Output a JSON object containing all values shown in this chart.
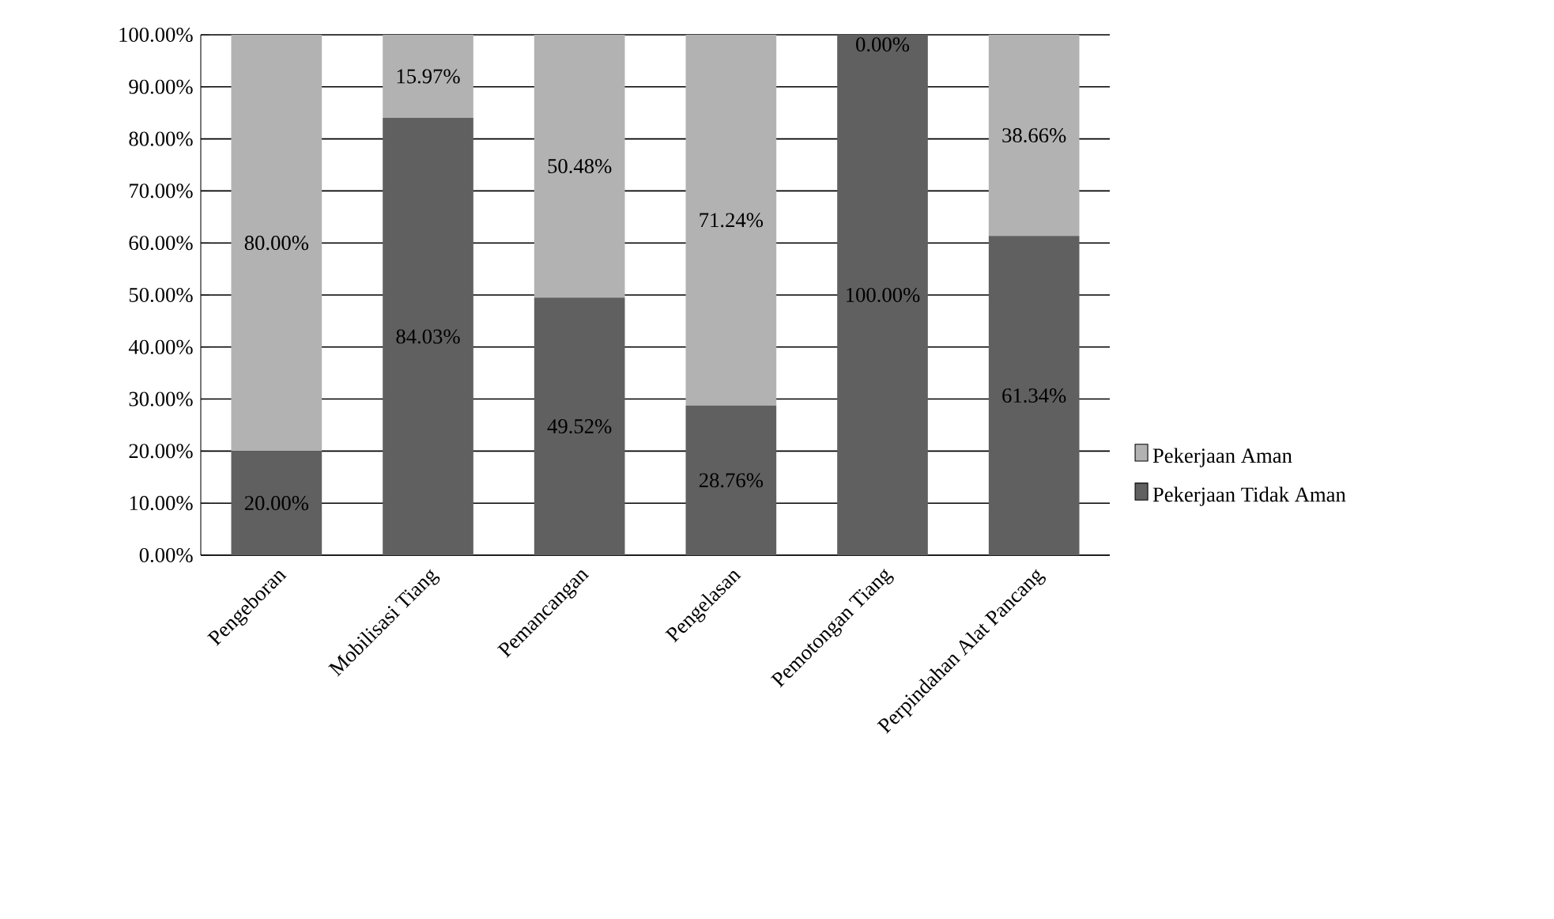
{
  "chart_data": {
    "type": "bar",
    "stacked": true,
    "categories": [
      "Pengeboran",
      "Mobilisasi Tiang",
      "Pemancangan",
      "Pengelasan",
      "Pemotongan Tiang",
      "Perpindahan Alat Pancang"
    ],
    "series": [
      {
        "name": "Pekerjaan Tidak Aman",
        "color": "#606060",
        "values": [
          20,
          84.03,
          49.52,
          28.76,
          100,
          61.34
        ],
        "value_labels": [
          "20.00%",
          "84.03%",
          "49.52%",
          "28.76%",
          "100.00%",
          "61.34%"
        ]
      },
      {
        "name": "Pekerjaan Aman",
        "color": "#b2b2b2",
        "values": [
          80,
          15.97,
          50.48,
          71.24,
          0,
          38.66
        ],
        "value_labels": [
          "80.00%",
          "15.97%",
          "50.48%",
          "71.24%",
          "0.00%",
          "38.66%"
        ]
      }
    ],
    "ylim": [
      0,
      100
    ],
    "yticks": [
      {
        "value": 0,
        "label": "0.00%"
      },
      {
        "value": 10,
        "label": "10.00%"
      },
      {
        "value": 20,
        "label": "20.00%"
      },
      {
        "value": 30,
        "label": "30.00%"
      },
      {
        "value": 40,
        "label": "40.00%"
      },
      {
        "value": 50,
        "label": "50.00%"
      },
      {
        "value": 60,
        "label": "60.00%"
      },
      {
        "value": 70,
        "label": "70.00%"
      },
      {
        "value": 80,
        "label": "80.00%"
      },
      {
        "value": 90,
        "label": "90.00%"
      },
      {
        "value": 100,
        "label": "100.00%"
      }
    ],
    "grid": "y",
    "legend": "right"
  }
}
